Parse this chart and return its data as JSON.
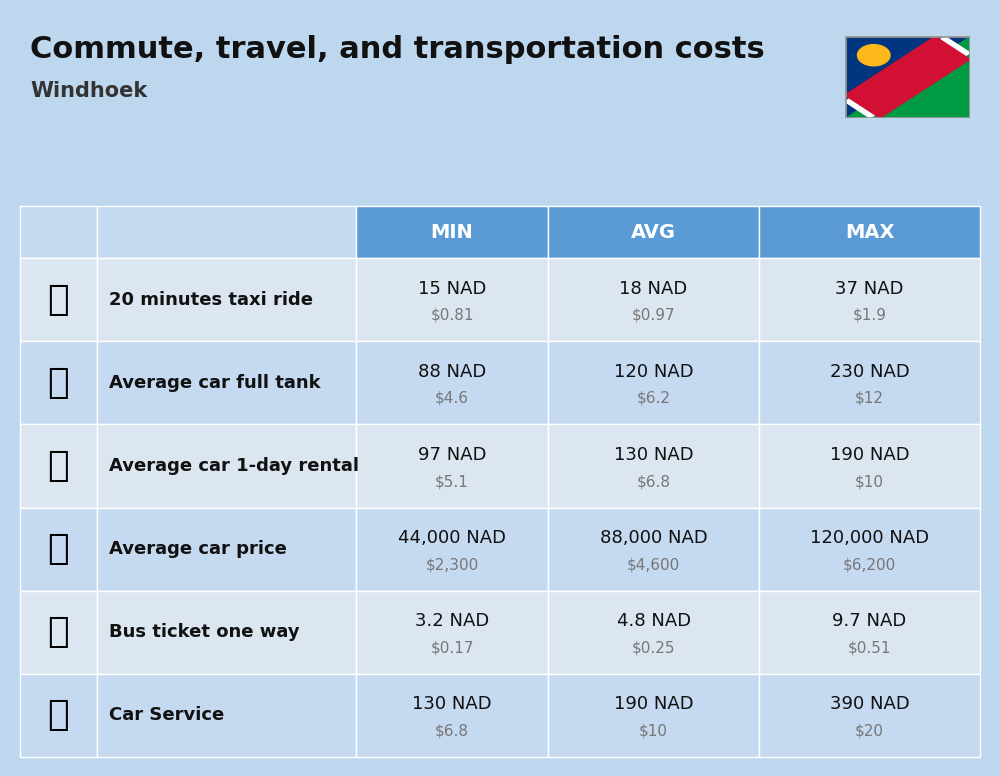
{
  "title": "Commute, travel, and transportation costs",
  "subtitle": "Windhoek",
  "bg_color": "#bdd7ee",
  "header_bg": "#5b9bd5",
  "header_text_color": "#ffffff",
  "row_bg_light": "#c5d9f1",
  "row_bg_white": "#dce6f1",
  "col_headers": [
    "MIN",
    "AVG",
    "MAX"
  ],
  "rows": [
    {
      "label": "20 minutes taxi ride",
      "min_nad": "15 NAD",
      "min_usd": "$0.81",
      "avg_nad": "18 NAD",
      "avg_usd": "$0.97",
      "max_nad": "37 NAD",
      "max_usd": "$1.9"
    },
    {
      "label": "Average car full tank",
      "min_nad": "88 NAD",
      "min_usd": "$4.6",
      "avg_nad": "120 NAD",
      "avg_usd": "$6.2",
      "max_nad": "230 NAD",
      "max_usd": "$12"
    },
    {
      "label": "Average car 1-day rental",
      "min_nad": "97 NAD",
      "min_usd": "$5.1",
      "avg_nad": "130 NAD",
      "avg_usd": "$6.8",
      "max_nad": "190 NAD",
      "max_usd": "$10"
    },
    {
      "label": "Average car price",
      "min_nad": "44,000 NAD",
      "min_usd": "$2,300",
      "avg_nad": "88,000 NAD",
      "avg_usd": "$4,600",
      "max_nad": "120,000 NAD",
      "max_usd": "$6,200"
    },
    {
      "label": "Bus ticket one way",
      "min_nad": "3.2 NAD",
      "min_usd": "$0.17",
      "avg_nad": "4.8 NAD",
      "avg_usd": "$0.25",
      "max_nad": "9.7 NAD",
      "max_usd": "$0.51"
    },
    {
      "label": "Car Service",
      "min_nad": "130 NAD",
      "min_usd": "$6.8",
      "avg_nad": "190 NAD",
      "avg_usd": "$10",
      "max_nad": "390 NAD",
      "max_usd": "$20"
    }
  ],
  "icon_texts": [
    "🚕",
    "⛽",
    "🚙",
    "🚗",
    "🚌",
    "🔧"
  ],
  "title_fontsize": 22,
  "subtitle_fontsize": 15,
  "header_fontsize": 14,
  "label_fontsize": 13,
  "value_fontsize": 13,
  "usd_fontsize": 11,
  "emoji_fontsize": 26
}
